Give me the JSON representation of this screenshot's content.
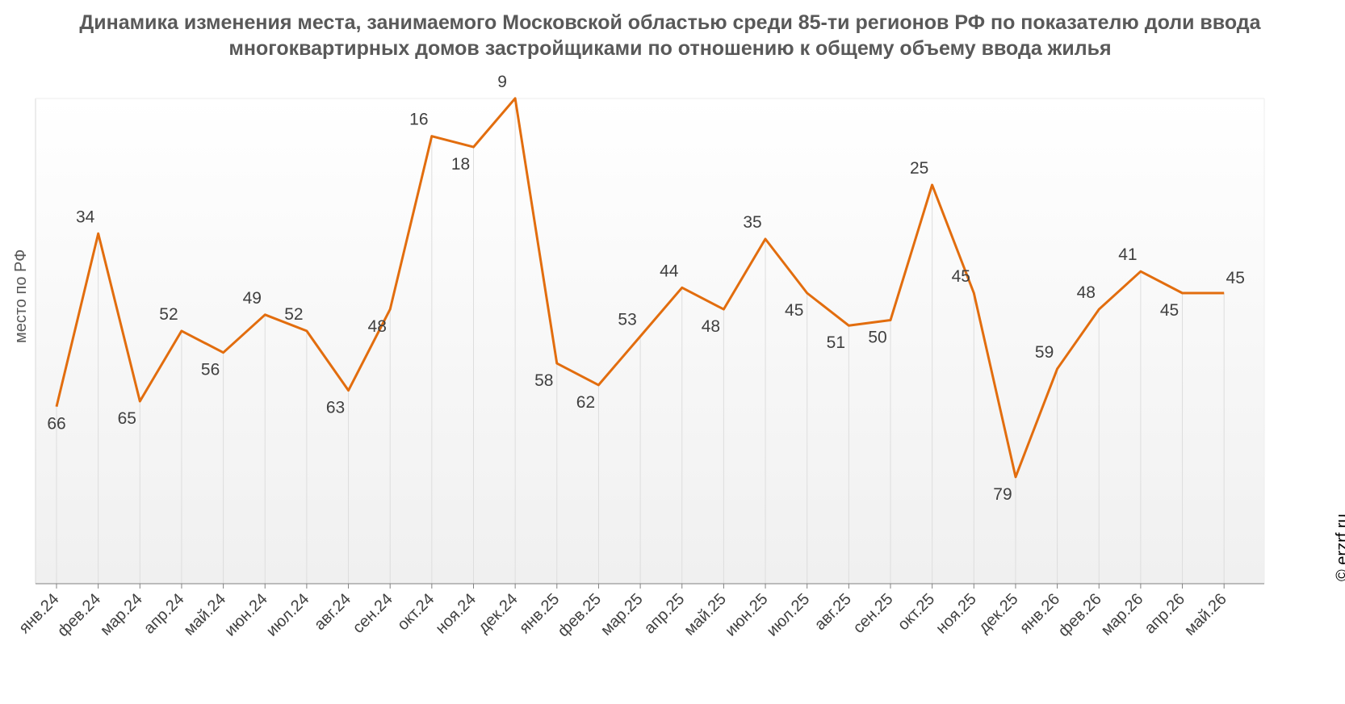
{
  "chart_data": {
    "type": "line",
    "title": "Динамика изменения места, занимаемого Московской областью среди 85-ти регионов РФ по показателю доли ввода многоквартирных домов застройщиками по отношению к общему объему ввода жилья",
    "ylabel": "место по РФ",
    "xlabel": "",
    "y_inverted": true,
    "ylim": [
      1,
      85
    ],
    "grid": false,
    "categories": [
      "янв.24",
      "фев.24",
      "мар.24",
      "апр.24",
      "май.24",
      "июн.24",
      "июл.24",
      "авг.24",
      "сен.24",
      "окт.24",
      "ноя.24",
      "дек.24",
      "янв.25",
      "фев.25",
      "мар.25",
      "апр.25",
      "май.25",
      "июн.25",
      "июл.25",
      "авг.25",
      "сен.25",
      "окт.25",
      "ноя.25",
      "дек.25",
      "янв.26",
      "фев.26",
      "мар.26",
      "апр.26",
      "май.26"
    ],
    "series": [
      {
        "values": [
          66,
          34,
          65,
          52,
          56,
          49,
          52,
          63,
          48,
          16,
          18,
          9,
          58,
          62,
          53,
          44,
          48,
          35,
          45,
          51,
          50,
          25,
          45,
          79,
          59,
          48,
          41,
          45,
          45
        ],
        "color": "#E26D0E"
      }
    ]
  },
  "watermark": "© erzrf.ru"
}
